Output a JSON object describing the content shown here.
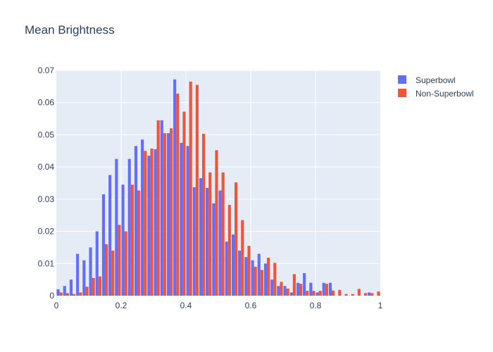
{
  "chart_data": {
    "type": "bar",
    "title": "Mean Brightness",
    "xlabel": "",
    "ylabel": "",
    "xlim": [
      0,
      1
    ],
    "ylim": [
      0,
      0.07
    ],
    "x_ticks": [
      0,
      0.2,
      0.4,
      0.6,
      0.8,
      1
    ],
    "x_tick_labels": [
      "0",
      "0.2",
      "0.4",
      "0.6",
      "0.8",
      "1"
    ],
    "y_ticks": [
      0,
      0.01,
      0.02,
      0.03,
      0.04,
      0.05,
      0.06,
      0.07
    ],
    "y_tick_labels": [
      "0",
      "0.01",
      "0.02",
      "0.03",
      "0.04",
      "0.05",
      "0.06",
      "0.07"
    ],
    "grid": true,
    "legend_position": "top-right",
    "bin_width": 0.02,
    "bin_centers": [
      0.01,
      0.03,
      0.05,
      0.07,
      0.09,
      0.11,
      0.13,
      0.15,
      0.17,
      0.19,
      0.21,
      0.23,
      0.25,
      0.27,
      0.29,
      0.31,
      0.33,
      0.35,
      0.37,
      0.39,
      0.41,
      0.43,
      0.45,
      0.47,
      0.49,
      0.51,
      0.53,
      0.55,
      0.57,
      0.59,
      0.61,
      0.63,
      0.65,
      0.67,
      0.69,
      0.71,
      0.73,
      0.75,
      0.77,
      0.79,
      0.81,
      0.83,
      0.85,
      0.87,
      0.89,
      0.91,
      0.93,
      0.95,
      0.97,
      0.99
    ],
    "series": [
      {
        "name": "Superbowl",
        "color": "#636efa",
        "values": [
          0.002,
          0.003,
          0.005,
          0.013,
          0.011,
          0.015,
          0.02,
          0.0315,
          0.0375,
          0.0425,
          0.0345,
          0.0425,
          0.0465,
          0.0485,
          0.0435,
          0.0455,
          0.0545,
          0.0505,
          0.0672,
          0.0475,
          0.0465,
          0.0337,
          0.0365,
          0.0335,
          0.0287,
          0.0327,
          0.0168,
          0.019,
          0.014,
          0.012,
          0.011,
          0.013,
          0.01,
          0.005,
          0.003,
          0.003,
          0.001,
          0.004,
          0.007,
          0.004,
          0.001,
          0.004,
          0.004,
          0,
          0,
          0,
          0,
          0,
          0.001,
          0
        ]
      },
      {
        "name": "Non-Superbowl",
        "color": "#ef553b",
        "values": [
          0.001,
          0.0008,
          0.0005,
          0.001,
          0.0028,
          0.0055,
          0.006,
          0.016,
          0.014,
          0.022,
          0.02,
          0.0345,
          0.0327,
          0.045,
          0.0457,
          0.0545,
          0.0505,
          0.052,
          0.0628,
          0.0572,
          0.0665,
          0.0655,
          0.0503,
          0.0383,
          0.0452,
          0.0383,
          0.0282,
          0.0352,
          0.0235,
          0.0155,
          0.009,
          0.008,
          0.0118,
          0.0102,
          0.0043,
          0.0022,
          0.0067,
          0.0037,
          0.0015,
          0.0015,
          0.0015,
          0.0037,
          0.0016,
          0.0018,
          0.0005,
          0.0005,
          0.0021,
          0.0008,
          0.0008,
          0.0013
        ]
      }
    ]
  }
}
